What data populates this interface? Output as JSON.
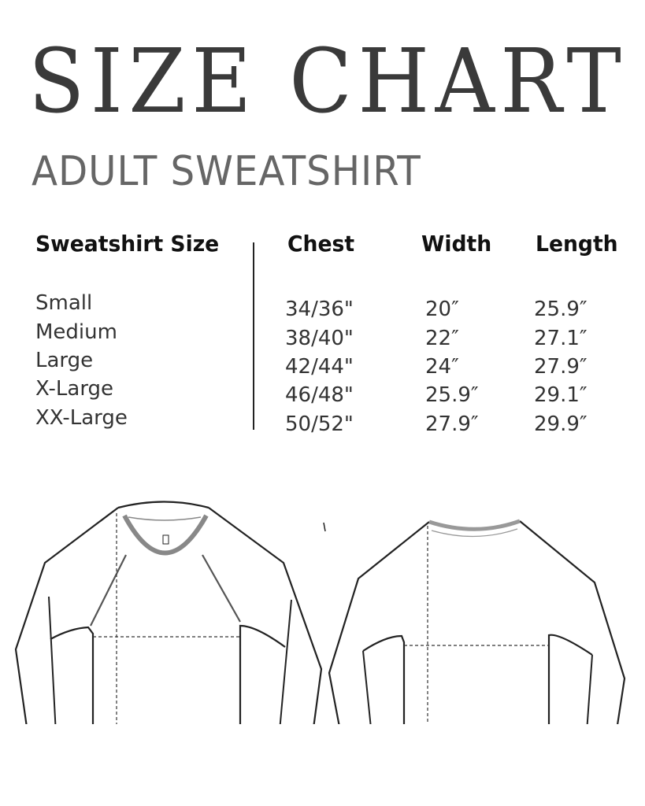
{
  "title": "SIZE CHART",
  "subtitle": "ADULT SWEATSHIRT",
  "table": {
    "headers": [
      "Sweatshirt Size",
      "Chest",
      "Width",
      "Length"
    ],
    "rows": [
      {
        "size": "Small",
        "chest": "34/36\"",
        "width": "20″",
        "length": "25.9″"
      },
      {
        "size": "Medium",
        "chest": "38/40\"",
        "width": "22″",
        "length": "27.1″"
      },
      {
        "size": "Large",
        "chest": "42/44\"",
        "width": "24″",
        "length": "27.9″"
      },
      {
        "size": "X-Large",
        "chest": "46/48\"",
        "width": "25.9″",
        "length": "29.1″"
      },
      {
        "size": "XX-Large",
        "chest": "50/52\"",
        "width": "27.9″",
        "length": "29.9″"
      }
    ]
  },
  "colors": {
    "title": "#3a3a3a",
    "subtitle": "#666666",
    "rib": "#bdbdbd"
  }
}
